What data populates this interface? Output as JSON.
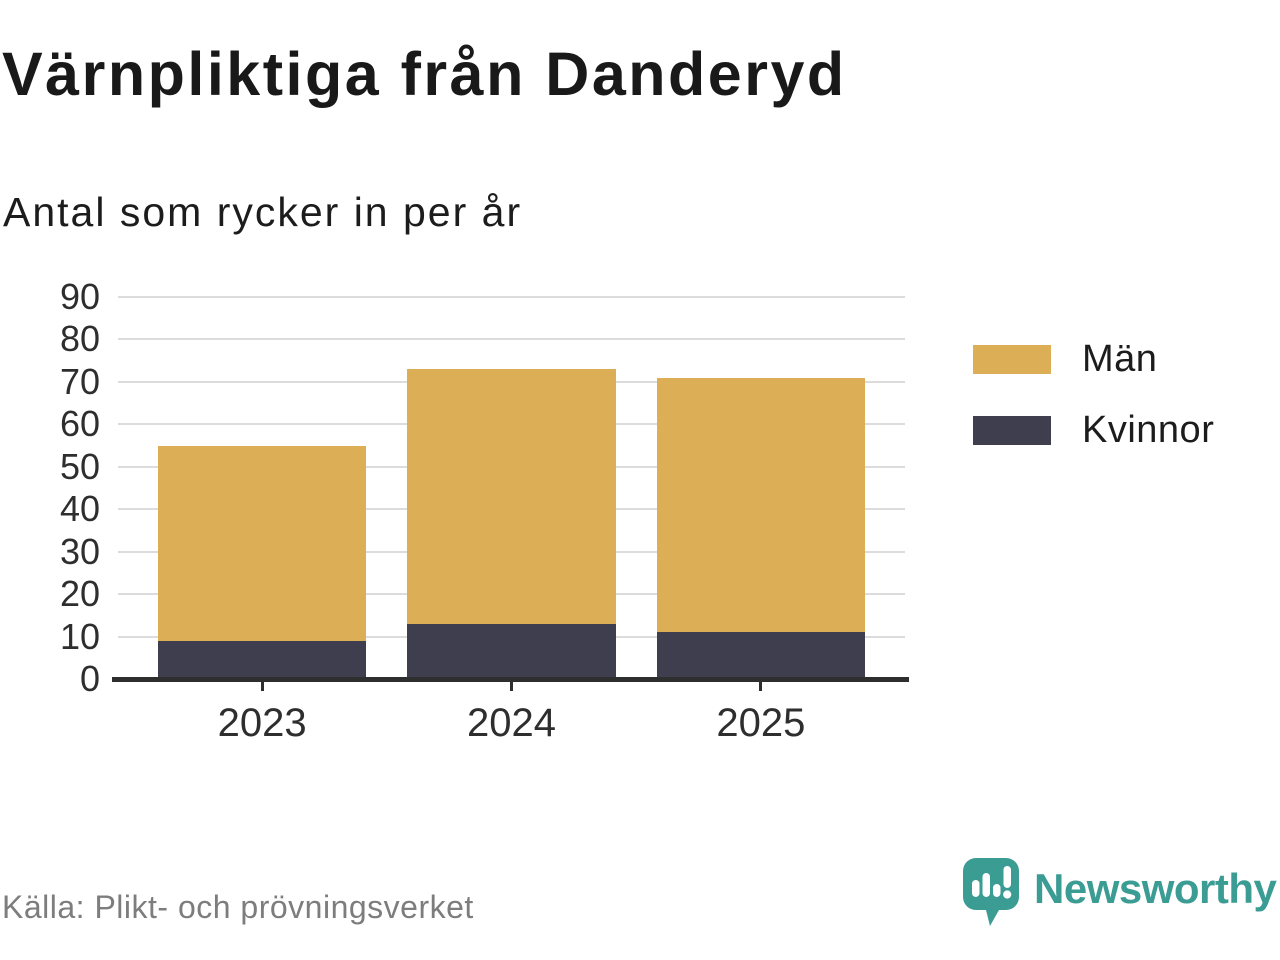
{
  "title": "Värnpliktiga från Danderyd",
  "subtitle": "Antal som rycker in per år",
  "source": "Källa: Plikt- och prövningsverket",
  "brand": {
    "name": "Newsworthy",
    "color": "#3A9C93"
  },
  "chart_data": {
    "type": "bar",
    "stacked": true,
    "title": "Värnpliktiga från Danderyd",
    "subtitle": "Antal som rycker in per år",
    "categories": [
      "2023",
      "2024",
      "2025"
    ],
    "series": [
      {
        "name": "Män",
        "color": "#DCAE55",
        "values": [
          46,
          60,
          60
        ]
      },
      {
        "name": "Kvinnor",
        "color": "#3F3E4F",
        "values": [
          9,
          13,
          11
        ]
      }
    ],
    "stack_totals": [
      55,
      73,
      71
    ],
    "ylim": [
      0,
      90
    ],
    "yticks": [
      0,
      10,
      20,
      30,
      40,
      50,
      60,
      70,
      80,
      90
    ],
    "grid": true,
    "gridline_color": "#dcdcdc",
    "axis_color": "#2e2e2e",
    "legend_position": "right",
    "legend_order": [
      "Män",
      "Kvinnor"
    ]
  }
}
